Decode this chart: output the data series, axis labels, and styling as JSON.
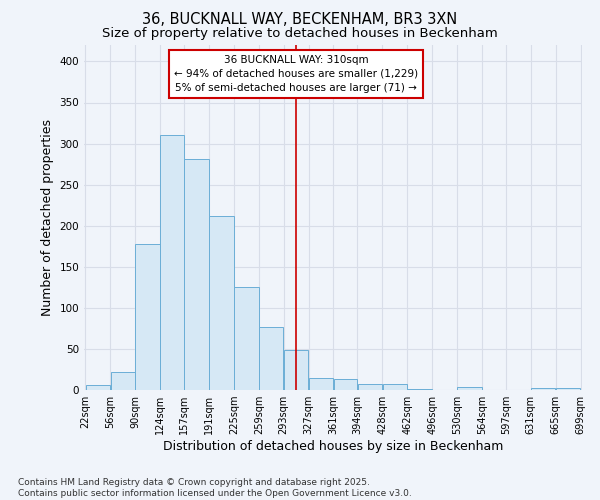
{
  "title1": "36, BUCKNALL WAY, BECKENHAM, BR3 3XN",
  "title2": "Size of property relative to detached houses in Beckenham",
  "xlabel": "Distribution of detached houses by size in Beckenham",
  "ylabel": "Number of detached properties",
  "bar_left_edges": [
    22,
    56,
    90,
    124,
    157,
    191,
    225,
    259,
    293,
    327,
    361,
    394,
    428,
    462,
    496,
    530,
    564,
    597,
    631,
    665
  ],
  "bar_widths": [
    34,
    34,
    34,
    33,
    34,
    34,
    34,
    34,
    34,
    34,
    33,
    34,
    34,
    34,
    34,
    34,
    33,
    34,
    34,
    34
  ],
  "bar_heights": [
    6,
    22,
    178,
    311,
    281,
    212,
    125,
    77,
    49,
    15,
    13,
    7,
    7,
    1,
    0,
    4,
    0,
    0,
    3,
    3
  ],
  "tick_labels": [
    "22sqm",
    "56sqm",
    "90sqm",
    "124sqm",
    "157sqm",
    "191sqm",
    "225sqm",
    "259sqm",
    "293sqm",
    "327sqm",
    "361sqm",
    "394sqm",
    "428sqm",
    "462sqm",
    "496sqm",
    "530sqm",
    "564sqm",
    "597sqm",
    "631sqm",
    "665sqm",
    "699sqm"
  ],
  "bar_color": "#d6e8f5",
  "bar_edge_color": "#6baed6",
  "vline_x": 310,
  "vline_color": "#cc0000",
  "annotation_line1": "36 BUCKNALL WAY: 310sqm",
  "annotation_line2": "← 94% of detached houses are smaller (1,229)",
  "annotation_line3": "5% of semi-detached houses are larger (71) →",
  "annotation_box_facecolor": "#ffffff",
  "annotation_box_edge": "#cc0000",
  "ylim": [
    0,
    420
  ],
  "yticks": [
    0,
    50,
    100,
    150,
    200,
    250,
    300,
    350,
    400
  ],
  "background_color": "#f0f4fa",
  "grid_color": "#d8dde8",
  "footer_line1": "Contains HM Land Registry data © Crown copyright and database right 2025.",
  "footer_line2": "Contains public sector information licensed under the Open Government Licence v3.0.",
  "title_fontsize": 10.5,
  "subtitle_fontsize": 9.5,
  "axis_label_fontsize": 9,
  "tick_fontsize": 7,
  "annotation_fontsize": 7.5,
  "footer_fontsize": 6.5
}
